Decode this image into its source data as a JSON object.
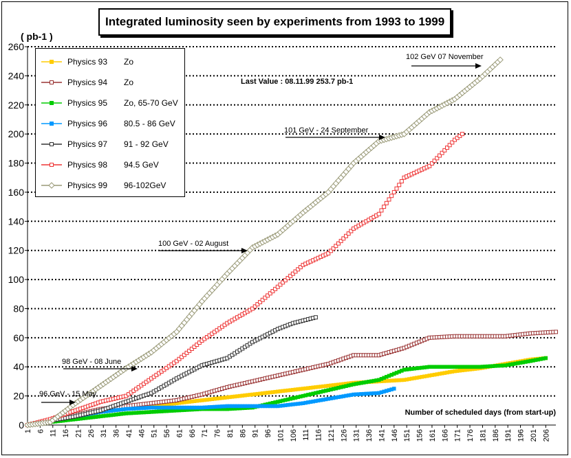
{
  "chart_data": {
    "type": "line",
    "title": "Integrated luminosity seen by experiments from 1993 to 1999",
    "ylabel": "( pb-1 )",
    "xlabel": "Number of scheduled days (from start-up)",
    "ylim": [
      0,
      260
    ],
    "xlim": [
      1,
      210
    ],
    "yticks": [
      0,
      20,
      40,
      60,
      80,
      100,
      120,
      140,
      160,
      180,
      200,
      220,
      240,
      260
    ],
    "xticks": [
      "1",
      "6",
      "11",
      "16",
      "21",
      "26",
      "31",
      "36",
      "41",
      "46",
      "51",
      "56",
      "61",
      "66",
      "71",
      "76",
      "81",
      "86",
      "91",
      "96",
      "101",
      "106",
      "111",
      "116",
      "121",
      "126",
      "131",
      "136",
      "141",
      "146",
      "151",
      "156",
      "161",
      "166",
      "171",
      "176",
      "181",
      "186",
      "191",
      "196",
      "201",
      "206"
    ],
    "annotation_last_value": "Last Value : 08.11.99  253.7 pb-1",
    "annotations": [
      {
        "text": "102 GeV 07 November",
        "x": 186,
        "y": 251
      },
      {
        "text": "101 GeV - 24 September",
        "x": 140,
        "y": 198
      },
      {
        "text": "100 GeV  - 02 August",
        "x": 90,
        "y": 124
      },
      {
        "text": "98 GeV - 08 June",
        "x": 27,
        "y": 38
      },
      {
        "text": "96 GeV - 15 May",
        "x": 17,
        "y": 13
      }
    ],
    "series": [
      {
        "name": "Physics 93",
        "energy": "Zo",
        "color": "#FFCC00",
        "marker": "square-filled",
        "x": [
          1,
          10,
          20,
          30,
          40,
          50,
          60,
          70,
          80,
          90,
          100,
          110,
          120,
          130,
          140,
          150,
          160,
          170,
          180,
          190,
          200,
          206
        ],
        "y": [
          0,
          2,
          5,
          9,
          11,
          13,
          15,
          17,
          19,
          21,
          23,
          25,
          27,
          29,
          30,
          31,
          34,
          37,
          39,
          42,
          45,
          46
        ]
      },
      {
        "name": "Physics 94",
        "energy": "Zo",
        "color": "#993333",
        "marker": "square-open",
        "x": [
          1,
          10,
          20,
          30,
          40,
          50,
          60,
          70,
          80,
          90,
          100,
          110,
          120,
          130,
          140,
          150,
          160,
          170,
          180,
          190,
          200,
          210
        ],
        "y": [
          0,
          3,
          7,
          11,
          13,
          15,
          17,
          21,
          26,
          30,
          34,
          38,
          42,
          48,
          48,
          53,
          60,
          61,
          61,
          61,
          63,
          64
        ]
      },
      {
        "name": "Physics 95",
        "energy": "Zo, 65-70 GeV",
        "color": "#00CC00",
        "marker": "square-filled",
        "x": [
          1,
          10,
          20,
          30,
          40,
          50,
          60,
          70,
          80,
          90,
          100,
          110,
          120,
          130,
          140,
          150,
          160,
          170,
          180,
          190,
          200,
          206
        ],
        "y": [
          0,
          2,
          4,
          6,
          8,
          9,
          10,
          11,
          11,
          12,
          16,
          20,
          24,
          28,
          31,
          38,
          40,
          40,
          40,
          41,
          44,
          46
        ]
      },
      {
        "name": "Physics 96",
        "energy": "80.5 - 86 GeV",
        "color": "#0099FF",
        "marker": "square-filled",
        "x": [
          1,
          10,
          20,
          30,
          40,
          50,
          60,
          70,
          80,
          90,
          100,
          110,
          120,
          130,
          140,
          146
        ],
        "y": [
          0,
          3,
          6,
          9,
          11,
          12,
          12,
          12,
          13,
          13,
          13,
          15,
          18,
          21,
          22,
          25
        ]
      },
      {
        "name": "Physics 97",
        "energy": "91 - 92 GeV",
        "color": "#333333",
        "marker": "square-open",
        "x": [
          1,
          10,
          20,
          30,
          40,
          50,
          60,
          70,
          80,
          90,
          100,
          106,
          115
        ],
        "y": [
          0,
          3,
          6,
          10,
          16,
          22,
          32,
          41,
          46,
          57,
          66,
          70,
          74
        ]
      },
      {
        "name": "Physics 98",
        "energy": "94.5 GeV",
        "color": "#EE3333",
        "marker": "square-open",
        "x": [
          1,
          10,
          20,
          30,
          40,
          50,
          60,
          70,
          80,
          90,
          100,
          110,
          120,
          130,
          140,
          150,
          160,
          170,
          173
        ],
        "y": [
          0,
          4,
          10,
          16,
          20,
          32,
          44,
          58,
          70,
          80,
          95,
          110,
          118,
          135,
          145,
          170,
          178,
          196,
          200
        ]
      },
      {
        "name": "Physics 99",
        "energy": "96-102GeV",
        "color": "#999977",
        "marker": "diamond-open",
        "x": [
          1,
          10,
          20,
          30,
          40,
          50,
          60,
          70,
          80,
          90,
          100,
          110,
          120,
          130,
          140,
          150,
          160,
          170,
          180,
          188
        ],
        "y": [
          0,
          2,
          15,
          27,
          39,
          50,
          64,
          85,
          104,
          122,
          131,
          146,
          160,
          180,
          195,
          200,
          215,
          224,
          238,
          251
        ]
      }
    ]
  }
}
